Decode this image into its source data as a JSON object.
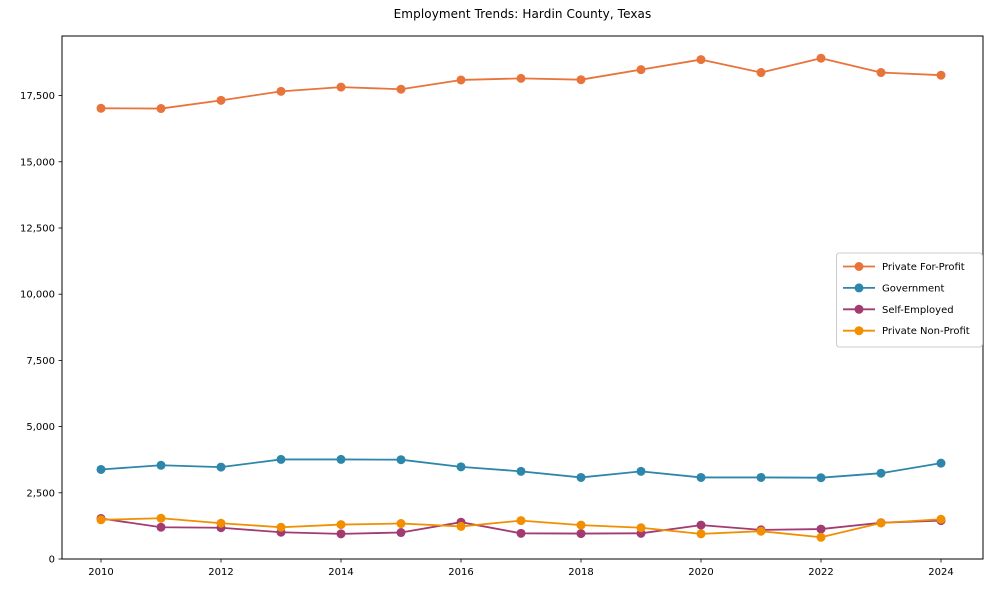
{
  "chart_data": {
    "type": "line",
    "title": "Employment Trends: Hardin County, Texas",
    "xlabel": "",
    "ylabel": "",
    "grid": false,
    "legend": {
      "visible": true,
      "position": "center right"
    },
    "x": [
      2010,
      2011,
      2012,
      2013,
      2014,
      2015,
      2016,
      2017,
      2018,
      2019,
      2020,
      2021,
      2022,
      2023,
      2024
    ],
    "x_tick_labels": [
      "2010",
      "2012",
      "2014",
      "2016",
      "2018",
      "2020",
      "2022",
      "2024"
    ],
    "x_ticks": [
      2010,
      2012,
      2014,
      2016,
      2018,
      2020,
      2022,
      2024
    ],
    "y_ticks": [
      0,
      2500,
      5000,
      7500,
      10000,
      12500,
      15000,
      17500
    ],
    "y_tick_labels": [
      "0",
      "2,500",
      "5,000",
      "7,500",
      "10,000",
      "12,500",
      "15,000",
      "17,500"
    ],
    "xlim": [
      2009.35,
      2024.7
    ],
    "ylim": [
      0,
      19750
    ],
    "series": [
      {
        "name": "Private For-Profit",
        "color": "#E8743B",
        "values": [
          17020,
          17010,
          17320,
          17660,
          17820,
          17740,
          18090,
          18150,
          18100,
          18480,
          18860,
          18370,
          18910,
          18370,
          18270
        ]
      },
      {
        "name": "Government",
        "color": "#2E86AB",
        "values": [
          3380,
          3540,
          3470,
          3760,
          3760,
          3750,
          3480,
          3310,
          3080,
          3310,
          3080,
          3080,
          3070,
          3240,
          3620
        ]
      },
      {
        "name": "Self-Employed",
        "color": "#A23B72",
        "values": [
          1530,
          1200,
          1180,
          1010,
          950,
          1000,
          1390,
          970,
          960,
          970,
          1280,
          1100,
          1130,
          1370,
          1450
        ]
      },
      {
        "name": "Private Non-Profit",
        "color": "#F18F01",
        "values": [
          1480,
          1540,
          1350,
          1200,
          1300,
          1340,
          1230,
          1450,
          1280,
          1180,
          950,
          1050,
          820,
          1360,
          1500
        ]
      }
    ]
  }
}
